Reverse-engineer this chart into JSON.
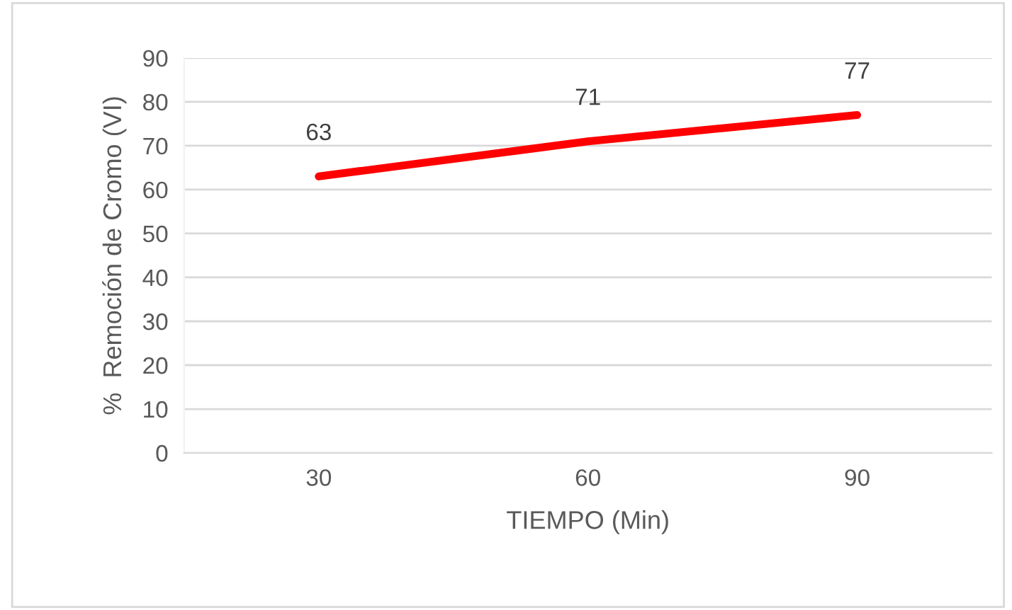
{
  "chart_data": {
    "type": "line",
    "xlabel": "TIEMPO (Min)",
    "ylabel": "%  Remoción de Cromo (VI)",
    "categories": [
      "30",
      "60",
      "90"
    ],
    "series": [
      {
        "color": "#ff0000",
        "values": [
          63,
          71,
          77
        ]
      }
    ],
    "ylim": [
      0,
      90
    ],
    "yticks": [
      0,
      10,
      20,
      30,
      40,
      50,
      60,
      70,
      80,
      90
    ],
    "grid": "y",
    "data_labels": true,
    "marker": "none",
    "line_style": "solid"
  }
}
